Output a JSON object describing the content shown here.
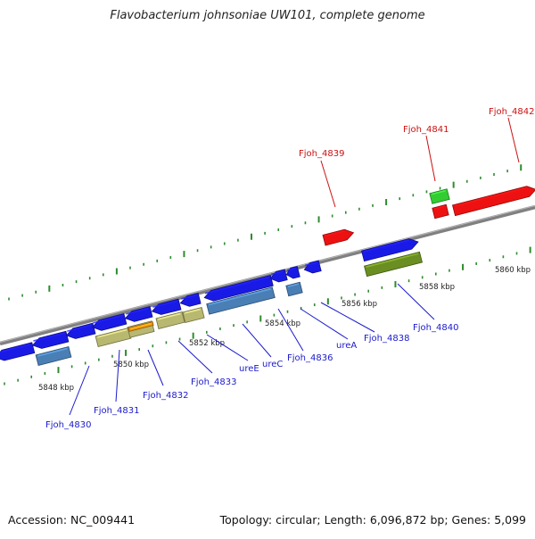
{
  "title": "Flavobacterium johnsoniae UW101, complete genome",
  "footer": {
    "accession": "Accession: NC_009441",
    "topology": "Topology: circular; Length: 6,096,872 bp; Genes: 5,099"
  },
  "colors": {
    "backbone": "#808080",
    "tick": "#2e8b2e",
    "label_blue": "#1a1acc",
    "label_red": "#cc1111",
    "gene_blue": "#1a1ae6",
    "gene_steel": "#4a7fb5",
    "gene_khaki": "#b8b870",
    "gene_orange": "#f09010",
    "gene_olive": "#6b8e23",
    "gene_red": "#ee1111",
    "gene_green": "#33cc33"
  },
  "scale_labels": [
    "5848 kbp",
    "5850 kbp",
    "5852 kbp",
    "5854 kbp",
    "5856 kbp",
    "5858 kbp",
    "5860 kbp"
  ],
  "gene_labels": [
    {
      "text": "Fjoh_4830",
      "color": "blue"
    },
    {
      "text": "Fjoh_4831",
      "color": "blue"
    },
    {
      "text": "Fjoh_4832",
      "color": "blue"
    },
    {
      "text": "Fjoh_4833",
      "color": "blue"
    },
    {
      "text": "ureE",
      "color": "blue"
    },
    {
      "text": "ureC",
      "color": "blue"
    },
    {
      "text": "Fjoh_4836",
      "color": "blue"
    },
    {
      "text": "ureA",
      "color": "blue"
    },
    {
      "text": "Fjoh_4838",
      "color": "blue"
    },
    {
      "text": "Fjoh_4839",
      "color": "red"
    },
    {
      "text": "Fjoh_4840",
      "color": "blue"
    },
    {
      "text": "Fjoh_4841",
      "color": "red"
    },
    {
      "text": "Fjoh_4842",
      "color": "red"
    }
  ]
}
